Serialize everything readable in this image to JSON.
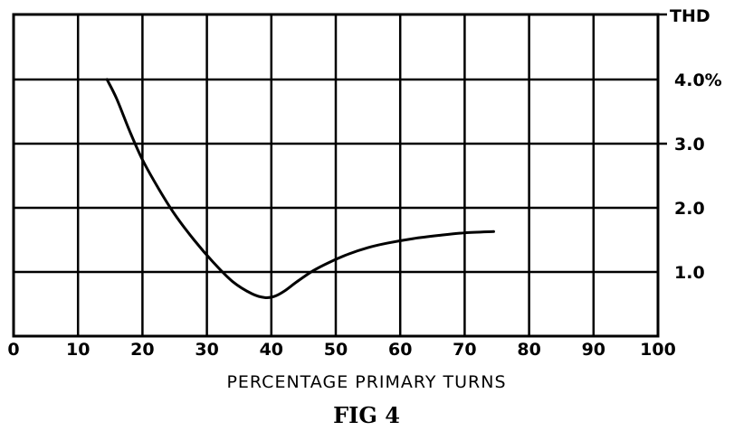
{
  "chart_data": {
    "type": "line",
    "xlabel": "PERCENTAGE PRIMARY TURNS",
    "ylabel": "THD",
    "caption": "FIG 4",
    "xlim": [
      0,
      100
    ],
    "ylim": [
      0,
      4.0
    ],
    "grid": true,
    "x_ticks": [
      {
        "value": 0,
        "label": "0"
      },
      {
        "value": 10,
        "label": "10"
      },
      {
        "value": 20,
        "label": "20"
      },
      {
        "value": 30,
        "label": "30"
      },
      {
        "value": 40,
        "label": "40"
      },
      {
        "value": 50,
        "label": "50"
      },
      {
        "value": 60,
        "label": "60"
      },
      {
        "value": 70,
        "label": "70"
      },
      {
        "value": 80,
        "label": "80"
      },
      {
        "value": 90,
        "label": "90"
      },
      {
        "value": 100,
        "label": "100"
      }
    ],
    "y_ticks": [
      {
        "value": 1.0,
        "label": "1.0"
      },
      {
        "value": 2.0,
        "label": "2.0"
      },
      {
        "value": 3.0,
        "label": "3.0"
      },
      {
        "value": 4.0,
        "label": "4.0%"
      }
    ],
    "series": [
      {
        "x": [
          14.5,
          16,
          18,
          20,
          22.5,
          25,
          28,
          31,
          34,
          37,
          39,
          40.5,
          42,
          44,
          46.5,
          49,
          52,
          55,
          58,
          62,
          66,
          70,
          74.5
        ],
        "y": [
          4.0,
          3.7,
          3.2,
          2.75,
          2.3,
          1.9,
          1.5,
          1.15,
          0.85,
          0.66,
          0.6,
          0.62,
          0.7,
          0.85,
          1.02,
          1.15,
          1.28,
          1.38,
          1.45,
          1.52,
          1.57,
          1.61,
          1.63
        ]
      }
    ]
  }
}
